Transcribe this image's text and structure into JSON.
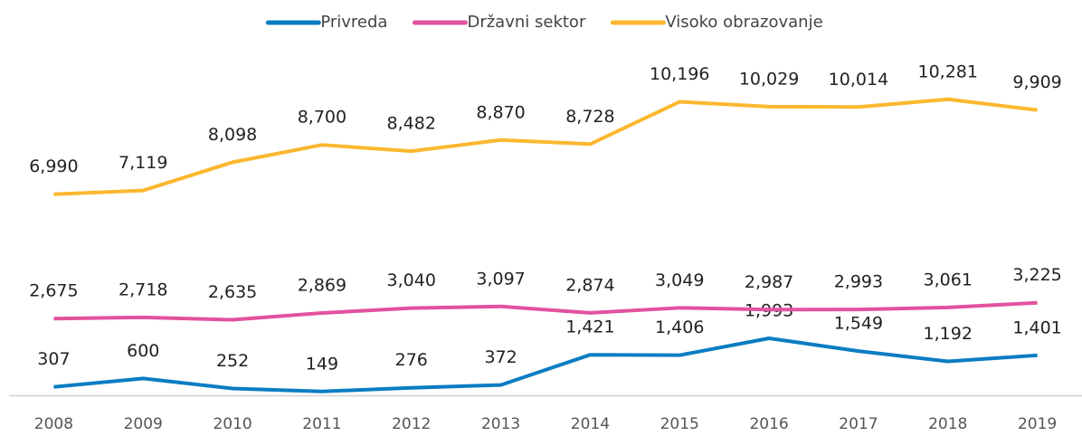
{
  "chart_data": {
    "type": "line",
    "categories": [
      "2008",
      "2009",
      "2010",
      "2011",
      "2012",
      "2013",
      "2014",
      "2015",
      "2016",
      "2017",
      "2018",
      "2019"
    ],
    "series": [
      {
        "name": "Privreda",
        "color": "#0b7dc2",
        "values": [
          307,
          600,
          252,
          149,
          276,
          372,
          1421,
          1406,
          1993,
          1549,
          1192,
          1401
        ],
        "value_labels": [
          "307",
          "600",
          "252",
          "149",
          "276",
          "372",
          "1,421",
          "1,406",
          "1,993",
          "1,549",
          "1,192",
          "1,401"
        ]
      },
      {
        "name": "Državni sektor",
        "color": "#e2529f",
        "values": [
          2675,
          2718,
          2635,
          2869,
          3040,
          3097,
          2874,
          3049,
          2987,
          2993,
          3061,
          3225
        ],
        "value_labels": [
          "2,675",
          "2,718",
          "2,635",
          "2,869",
          "3,040",
          "3,097",
          "2,874",
          "3,049",
          "2,987",
          "2,993",
          "3,061",
          "3,225"
        ]
      },
      {
        "name": "Visoko obrazovanje",
        "color": "#fbb72f",
        "values": [
          6990,
          7119,
          8098,
          8700,
          8482,
          8870,
          8728,
          10196,
          10029,
          10014,
          10281,
          9909
        ],
        "value_labels": [
          "6,990",
          "7,119",
          "8,098",
          "8,700",
          "8,482",
          "8,870",
          "8,728",
          "10,196",
          "10,029",
          "10,014",
          "10,281",
          "9,909"
        ]
      }
    ],
    "ylim": [
      0,
      12000
    ],
    "legend": "top"
  }
}
